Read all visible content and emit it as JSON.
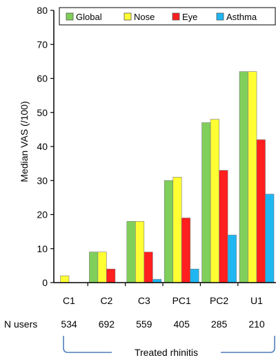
{
  "chart_data": {
    "type": "bar",
    "categories": [
      "C1",
      "C2",
      "C3",
      "PC1",
      "PC2",
      "U1"
    ],
    "series": [
      {
        "name": "Global",
        "color": "#7fcf5a",
        "values": [
          0,
          9,
          18,
          30,
          47,
          62
        ]
      },
      {
        "name": "Nose",
        "color": "#ffff33",
        "values": [
          2,
          9,
          18,
          31,
          48,
          62
        ]
      },
      {
        "name": "Eye",
        "color": "#ff1f1f",
        "values": [
          0,
          4,
          9,
          19,
          33,
          42
        ]
      },
      {
        "name": "Asthma",
        "color": "#1fb6f2",
        "values": [
          0,
          0,
          1,
          4,
          14,
          26
        ]
      }
    ],
    "ylabel": "Median VAS (/100)",
    "ylim": [
      0,
      80
    ],
    "yticks": [
      0,
      10,
      20,
      30,
      40,
      50,
      60,
      70,
      80
    ],
    "legend_position": "top",
    "n_users_label": "N users",
    "n_users": [
      "534",
      "692",
      "559",
      "405",
      "285",
      "210"
    ],
    "group_label": "Treated rhinitis"
  }
}
